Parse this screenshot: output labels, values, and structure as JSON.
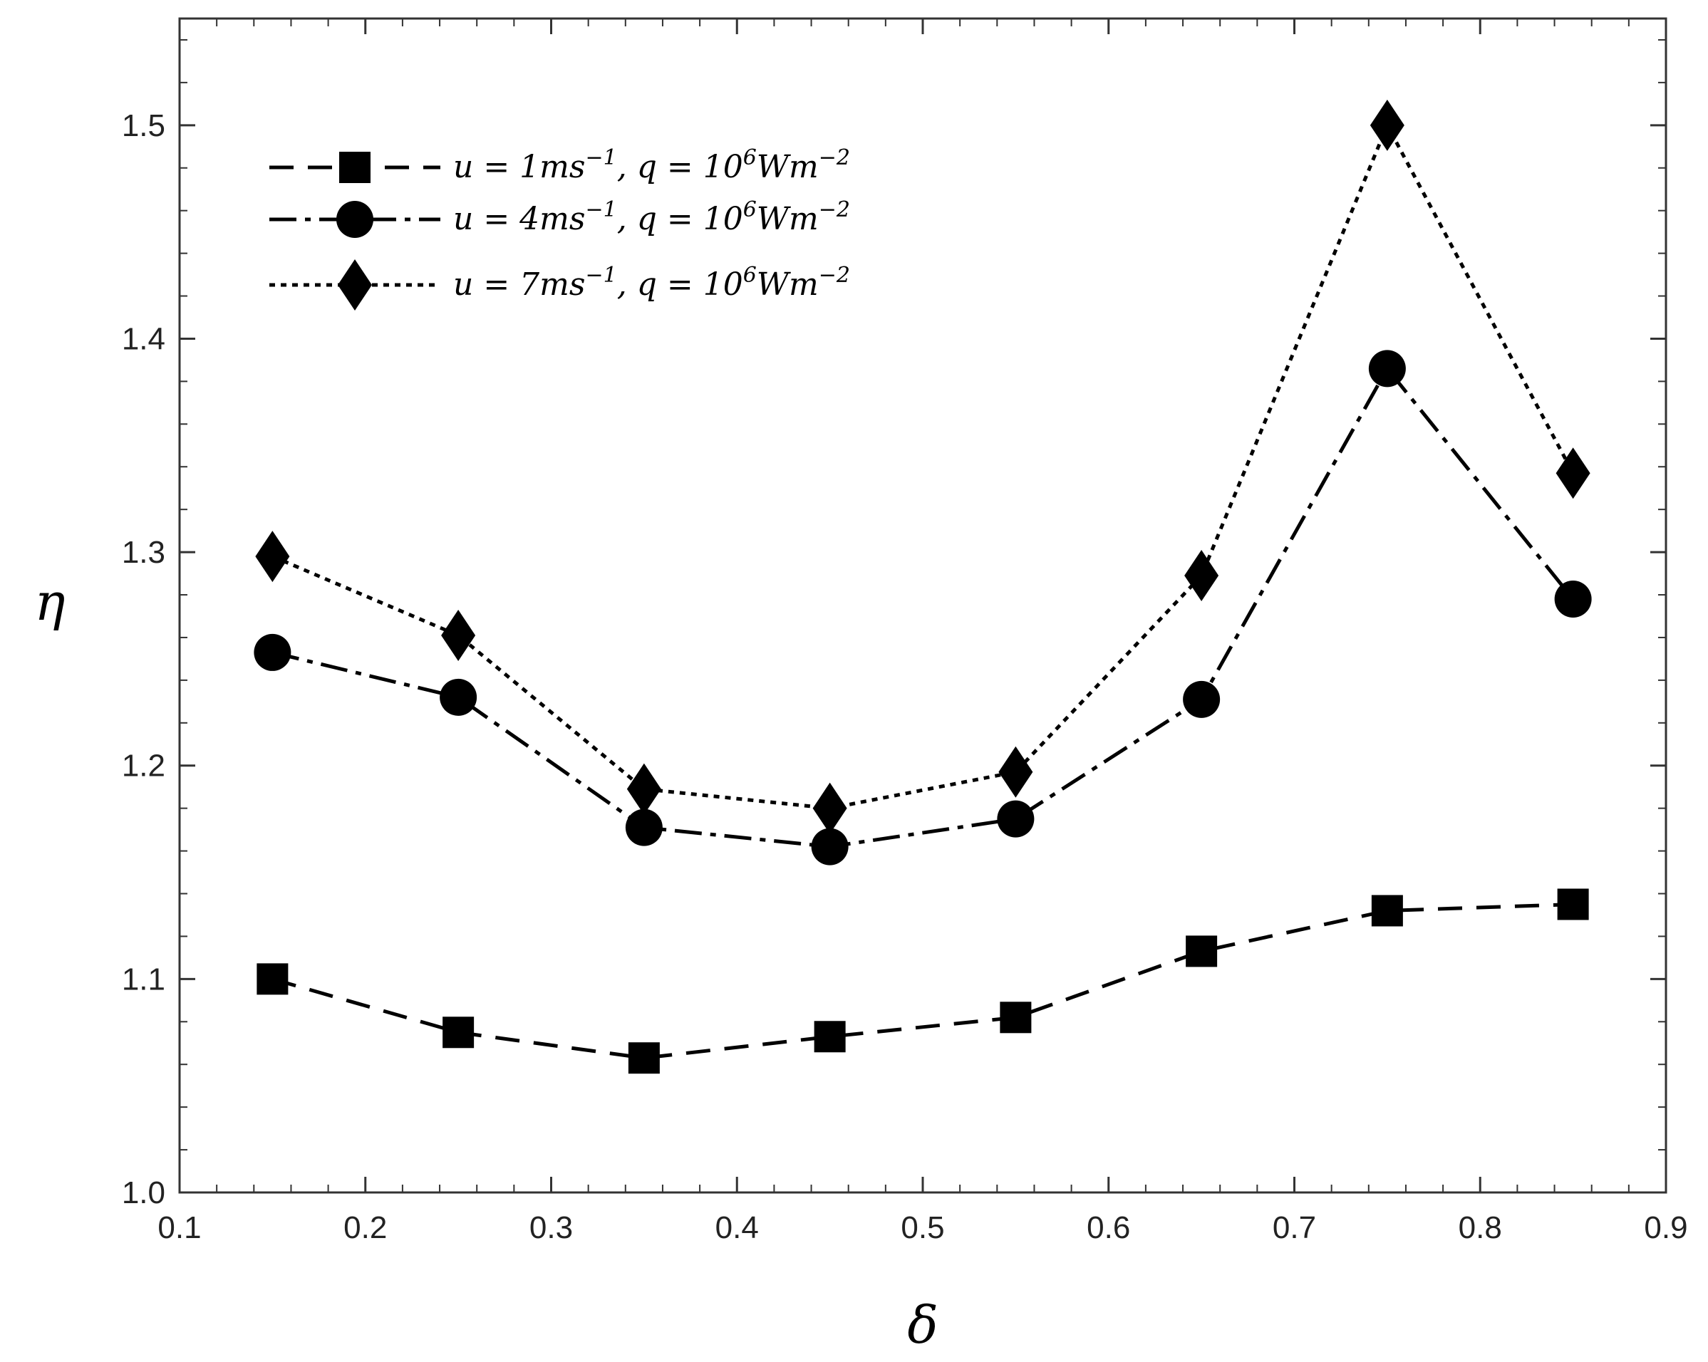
{
  "chart_data": {
    "type": "line",
    "xlabel": "δ",
    "ylabel": "η",
    "xlim": [
      0.1,
      0.9
    ],
    "ylim": [
      1.0,
      1.55
    ],
    "xticks": [
      "0.1",
      "0.2",
      "0.3",
      "0.4",
      "0.5",
      "0.6",
      "0.7",
      "0.8",
      "0.9"
    ],
    "yticks": [
      "1.0",
      "1.1",
      "1.2",
      "1.3",
      "1.4",
      "1.5"
    ],
    "grid": false,
    "legend_position": "top-left",
    "x": [
      0.15,
      0.25,
      0.35,
      0.45,
      0.55,
      0.65,
      0.75,
      0.85
    ],
    "series": [
      {
        "legend": {
          "u_val": "1ms",
          "u_exp": "−1",
          "q_val": "10",
          "q_exp": "6",
          "q_unit": "Wm",
          "q_unit_exp": "−2"
        },
        "marker": "square",
        "line_style": "dashed",
        "values": [
          1.1,
          1.075,
          1.063,
          1.073,
          1.082,
          1.113,
          1.132,
          1.135
        ]
      },
      {
        "legend": {
          "u_val": "4ms",
          "u_exp": "−1",
          "q_val": "10",
          "q_exp": "6",
          "q_unit": "Wm",
          "q_unit_exp": "−2"
        },
        "marker": "circle",
        "line_style": "dash-dot",
        "values": [
          1.253,
          1.232,
          1.171,
          1.162,
          1.175,
          1.231,
          1.386,
          1.278
        ]
      },
      {
        "legend": {
          "u_val": "7ms",
          "u_exp": "−1",
          "q_val": "10",
          "q_exp": "6",
          "q_unit": "Wm",
          "q_unit_exp": "−2"
        },
        "marker": "diamond",
        "line_style": "dotted",
        "values": [
          1.298,
          1.261,
          1.189,
          1.18,
          1.197,
          1.289,
          1.5,
          1.337
        ]
      }
    ]
  }
}
